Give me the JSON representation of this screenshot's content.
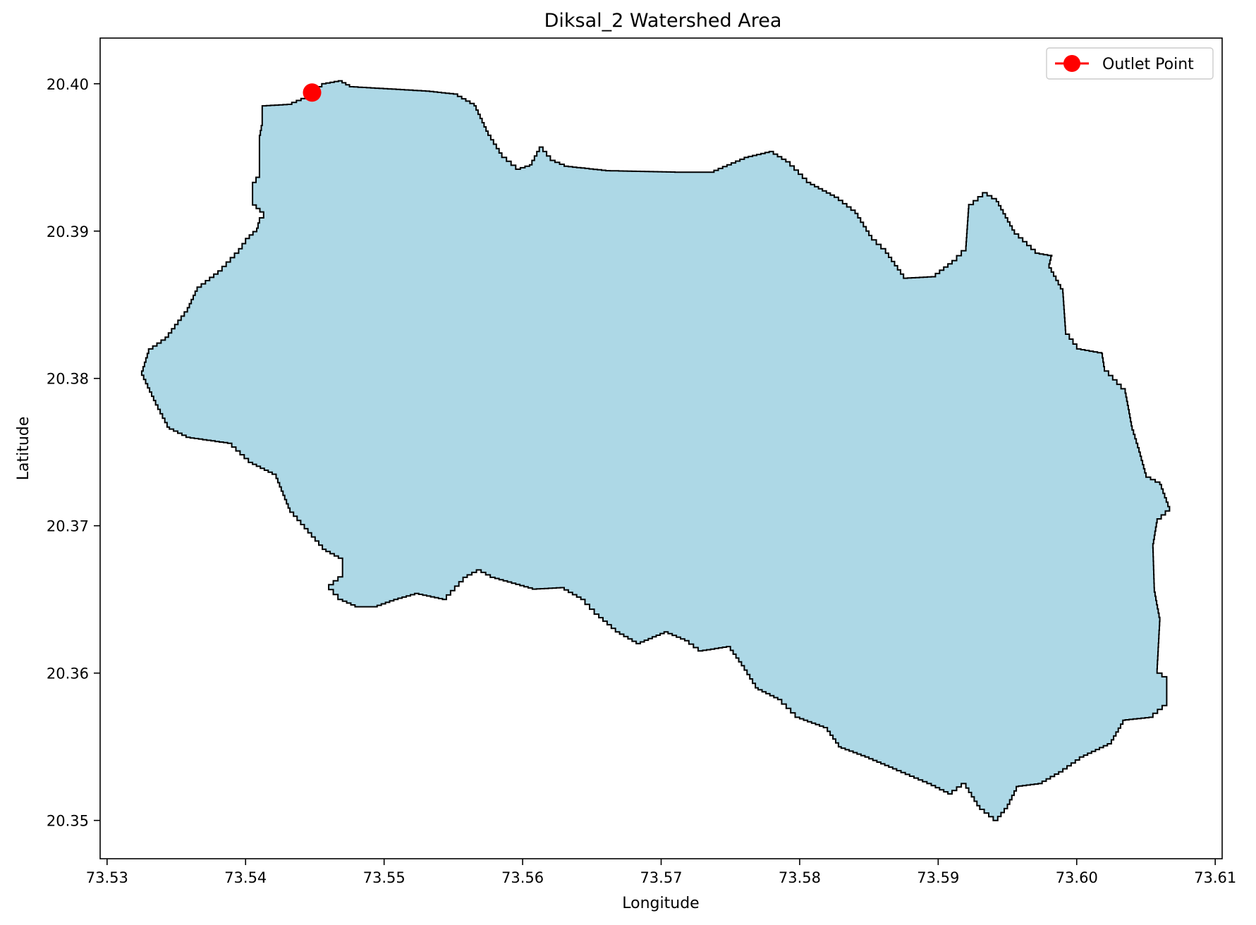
{
  "chart_data": {
    "type": "map",
    "title": "Diksal_2 Watershed Area",
    "xlabel": "Longitude",
    "ylabel": "Latitude",
    "xlim": [
      73.5295,
      73.6105
    ],
    "ylim": [
      20.3474,
      20.4031
    ],
    "xticks": [
      73.53,
      73.54,
      73.55,
      73.56,
      73.57,
      73.58,
      73.59,
      73.6,
      73.61
    ],
    "xtick_labels": [
      "73.53",
      "73.54",
      "73.55",
      "73.56",
      "73.57",
      "73.58",
      "73.59",
      "73.60",
      "73.61"
    ],
    "yticks": [
      20.35,
      20.36,
      20.37,
      20.38,
      20.39,
      20.4
    ],
    "ytick_labels": [
      "20.35",
      "20.36",
      "20.37",
      "20.38",
      "20.39",
      "20.40"
    ],
    "grid": false,
    "legend": {
      "placement": "top-right",
      "entries": [
        {
          "label": "Outlet Point",
          "color": "#ff0000"
        }
      ]
    },
    "watershed": {
      "fill": "#add8e6",
      "edge": "#000000",
      "boundary": [
        [
          73.533,
          20.382
        ],
        [
          73.5342,
          20.3828
        ],
        [
          73.5358,
          20.3848
        ],
        [
          73.5365,
          20.3862
        ],
        [
          73.538,
          20.3873
        ],
        [
          73.5395,
          20.3888
        ],
        [
          73.54,
          20.3895
        ],
        [
          73.5408,
          20.3902
        ],
        [
          73.541,
          20.3909
        ],
        [
          73.5413,
          20.3913
        ],
        [
          73.5405,
          20.392
        ],
        [
          73.5405,
          20.3933
        ],
        [
          73.541,
          20.394
        ],
        [
          73.541,
          20.3965
        ],
        [
          73.5412,
          20.3975
        ],
        [
          73.5412,
          20.3985
        ],
        [
          73.543,
          20.3986
        ],
        [
          73.544,
          20.399
        ],
        [
          73.5455,
          20.4
        ],
        [
          73.5467,
          20.4002
        ],
        [
          73.5475,
          20.3998
        ],
        [
          73.553,
          20.3995
        ],
        [
          73.555,
          20.3993
        ],
        [
          73.5565,
          20.3985
        ],
        [
          73.5575,
          20.3965
        ],
        [
          73.5585,
          20.395
        ],
        [
          73.5595,
          20.3942
        ],
        [
          73.5605,
          20.3945
        ],
        [
          73.5612,
          20.3957
        ],
        [
          73.562,
          20.3948
        ],
        [
          73.563,
          20.3944
        ],
        [
          73.566,
          20.3941
        ],
        [
          73.571,
          20.394
        ],
        [
          73.5735,
          20.394
        ],
        [
          73.576,
          20.395
        ],
        [
          73.5778,
          20.3954
        ],
        [
          73.579,
          20.3947
        ],
        [
          73.5805,
          20.3933
        ],
        [
          73.5825,
          20.3923
        ],
        [
          73.584,
          20.3912
        ],
        [
          73.5852,
          20.3894
        ],
        [
          73.5862,
          20.3885
        ],
        [
          73.5875,
          20.3868
        ],
        [
          73.5895,
          20.3869
        ],
        [
          73.591,
          20.388
        ],
        [
          73.592,
          20.389
        ],
        [
          73.5922,
          20.3918
        ],
        [
          73.5932,
          20.3926
        ],
        [
          73.5942,
          20.392
        ],
        [
          73.5955,
          20.3898
        ],
        [
          73.597,
          20.3885
        ],
        [
          73.5982,
          20.3883
        ],
        [
          73.598,
          20.3875
        ],
        [
          73.599,
          20.3858
        ],
        [
          73.5992,
          20.383
        ],
        [
          73.6,
          20.382
        ],
        [
          73.6018,
          20.3817
        ],
        [
          73.602,
          20.3805
        ],
        [
          73.6035,
          20.379
        ],
        [
          73.604,
          20.3765
        ],
        [
          73.6045,
          20.375
        ],
        [
          73.605,
          20.3733
        ],
        [
          73.606,
          20.3728
        ],
        [
          73.6067,
          20.371
        ],
        [
          73.6058,
          20.3702
        ],
        [
          73.6055,
          20.3685
        ],
        [
          73.6056,
          20.3655
        ],
        [
          73.606,
          20.3635
        ],
        [
          73.6058,
          20.36
        ],
        [
          73.6065,
          20.3595
        ],
        [
          73.6065,
          20.3578
        ],
        [
          73.6055,
          20.357
        ],
        [
          73.6035,
          20.3568
        ],
        [
          73.6025,
          20.3552
        ],
        [
          73.6005,
          20.3543
        ],
        [
          73.599,
          20.3533
        ],
        [
          73.5975,
          20.3525
        ],
        [
          73.5958,
          20.3523
        ],
        [
          73.595,
          20.3508
        ],
        [
          73.5943,
          20.35
        ],
        [
          73.593,
          20.351
        ],
        [
          73.592,
          20.3525
        ],
        [
          73.591,
          20.3518
        ],
        [
          73.5895,
          20.3525
        ],
        [
          73.587,
          20.3535
        ],
        [
          73.585,
          20.3543
        ],
        [
          73.583,
          20.355
        ],
        [
          73.582,
          20.3563
        ],
        [
          73.58,
          20.357
        ],
        [
          73.5787,
          20.3582
        ],
        [
          73.577,
          20.359
        ],
        [
          73.576,
          20.3605
        ],
        [
          73.575,
          20.3618
        ],
        [
          73.573,
          20.3615
        ],
        [
          73.572,
          20.3622
        ],
        [
          73.5705,
          20.3628
        ],
        [
          73.5685,
          20.362
        ],
        [
          73.567,
          20.3628
        ],
        [
          73.5655,
          20.364
        ],
        [
          73.5645,
          20.365
        ],
        [
          73.563,
          20.3658
        ],
        [
          73.561,
          20.3657
        ],
        [
          73.558,
          20.3665
        ],
        [
          73.557,
          20.367
        ],
        [
          73.556,
          20.3665
        ],
        [
          73.5545,
          20.365
        ],
        [
          73.5525,
          20.3654
        ],
        [
          73.551,
          20.365
        ],
        [
          73.5495,
          20.3645
        ],
        [
          73.5482,
          20.3645
        ],
        [
          73.547,
          20.365
        ],
        [
          73.546,
          20.366
        ],
        [
          73.547,
          20.3668
        ],
        [
          73.547,
          20.3678
        ],
        [
          73.5458,
          20.3684
        ],
        [
          73.5445,
          20.3698
        ],
        [
          73.5432,
          20.3712
        ],
        [
          73.5422,
          20.3735
        ],
        [
          73.5405,
          20.3743
        ],
        [
          73.539,
          20.3756
        ],
        [
          73.5375,
          20.3758
        ],
        [
          73.536,
          20.376
        ],
        [
          73.5345,
          20.3767
        ],
        [
          73.5335,
          20.3785
        ],
        [
          73.5325,
          20.3805
        ]
      ]
    },
    "outlet_point": {
      "label": "Outlet Point",
      "x": 73.5448,
      "y": 20.3994,
      "color": "#ff0000"
    }
  }
}
